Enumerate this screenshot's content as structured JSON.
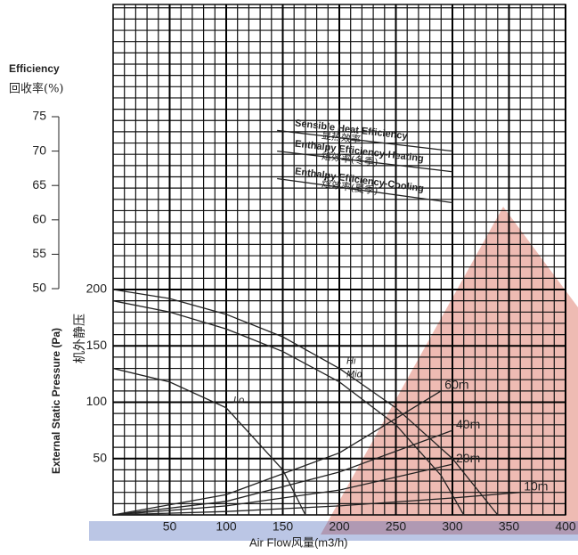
{
  "chart_data": {
    "type": "line",
    "title_efficiency": "Efficiency",
    "title_efficiency_cn": "回收率(%)",
    "ylabel": "External Static Pressure (Pa)",
    "ylabel_cn": "机外静压",
    "xlabel": "Air Flow风量(m3/h)",
    "xlim": [
      0,
      400
    ],
    "xticks": [
      50,
      100,
      150,
      200,
      250,
      300,
      350,
      400
    ],
    "ylim": [
      0,
      200
    ],
    "yticks": [
      50,
      100,
      150,
      200
    ],
    "y2lim": [
      50,
      75
    ],
    "y2ticks": [
      50,
      55,
      60,
      65,
      70,
      75
    ],
    "grid": true,
    "series": [
      {
        "name": "Hi",
        "color": "#222222",
        "x": [
          0,
          50,
          100,
          150,
          200,
          250,
          300,
          340
        ],
        "values": [
          200,
          192,
          178,
          158,
          130,
          95,
          50,
          0
        ]
      },
      {
        "name": "Mid",
        "color": "#222222",
        "x": [
          0,
          50,
          100,
          150,
          200,
          250,
          290,
          310
        ],
        "values": [
          190,
          180,
          165,
          145,
          118,
          80,
          35,
          0
        ]
      },
      {
        "name": "Lo",
        "color": "#222222",
        "x": [
          0,
          50,
          100,
          150,
          170
        ],
        "values": [
          130,
          118,
          95,
          40,
          0
        ]
      },
      {
        "name": "10m",
        "color": "#222222",
        "x": [
          0,
          100,
          200,
          300,
          360
        ],
        "values": [
          0,
          3,
          8,
          15,
          20
        ]
      },
      {
        "name": "20m",
        "color": "#222222",
        "x": [
          0,
          100,
          200,
          300
        ],
        "values": [
          0,
          8,
          22,
          45
        ]
      },
      {
        "name": "40m",
        "color": "#222222",
        "x": [
          0,
          100,
          200,
          300
        ],
        "values": [
          0,
          12,
          38,
          75
        ]
      },
      {
        "name": "60m",
        "color": "#222222",
        "x": [
          0,
          100,
          200,
          290
        ],
        "values": [
          0,
          18,
          55,
          110
        ]
      },
      {
        "name": "Sensible Heat Efficiency",
        "label_cn": "显热效率",
        "color": "#222222",
        "axis": "y2",
        "x": [
          145,
          300
        ],
        "values": [
          73,
          70
        ]
      },
      {
        "name": "Enthalpy Efficiency-Heating",
        "label_cn": "焓效率(冬季)",
        "color": "#222222",
        "axis": "y2",
        "x": [
          145,
          300
        ],
        "values": [
          70,
          67
        ]
      },
      {
        "name": "Enthalpy Efficiency-Cooling",
        "label_cn": "焓效率(夏季)",
        "color": "#222222",
        "axis": "y2",
        "x": [
          145,
          300
        ],
        "values": [
          66,
          62.5
        ]
      }
    ]
  }
}
